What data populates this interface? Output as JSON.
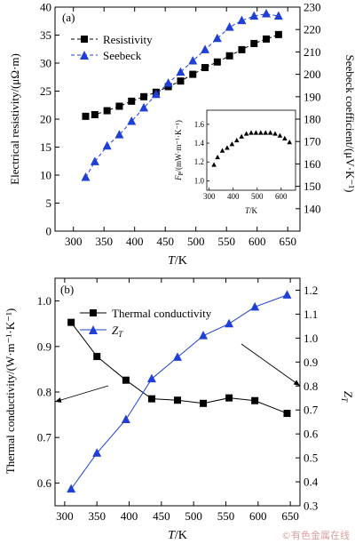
{
  "watermark": "©有色金属在线",
  "chart_data": [
    {
      "panel_label": "(a)",
      "type": "line",
      "xlabel_italic": "T",
      "xlabel_unit": "/K",
      "xlim": [
        270,
        670
      ],
      "xticks": [
        300,
        350,
        400,
        450,
        500,
        550,
        600,
        650
      ],
      "y1label": "Electrical resistivity/(μΩ·m)",
      "y1lim": [
        0,
        40
      ],
      "y1ticks": [
        0,
        5,
        10,
        15,
        20,
        25,
        30,
        35,
        40
      ],
      "y2label": "Seebeck coefficient/(μV·K⁻¹)",
      "y2lim": [
        130,
        230
      ],
      "y2ticks": [
        140,
        150,
        160,
        170,
        180,
        190,
        200,
        210,
        220,
        230
      ],
      "legend_position": "top-left",
      "series": [
        {
          "name": "Resistivity",
          "axis": "left",
          "marker": "square",
          "color": "#000000",
          "x": [
            320,
            335,
            355,
            375,
            395,
            415,
            435,
            455,
            475,
            495,
            515,
            535,
            555,
            575,
            595,
            615,
            635
          ],
          "y": [
            20.5,
            20.8,
            21.5,
            22.3,
            23.2,
            24.0,
            24.8,
            25.8,
            26.8,
            28.0,
            29.2,
            30.2,
            31.3,
            32.4,
            33.5,
            34.3,
            35.1
          ]
        },
        {
          "name": "Seebeck",
          "axis": "right",
          "marker": "triangle",
          "color": "#1f3fd6",
          "x": [
            320,
            335,
            355,
            375,
            395,
            415,
            435,
            455,
            475,
            495,
            515,
            535,
            555,
            575,
            595,
            615,
            635
          ],
          "y": [
            154,
            161,
            168,
            173,
            179,
            185,
            191,
            196,
            201,
            206,
            211,
            216,
            221,
            224,
            226,
            227,
            226
          ]
        }
      ],
      "inset": {
        "type": "scatter",
        "ylabel_italic": "F",
        "ylabel_sub": "P",
        "ylabel_unit": "/(mW·m⁻¹·K⁻¹)",
        "xlabel_italic": "T",
        "xlabel_unit": "/K",
        "xlim": [
          290,
          660
        ],
        "xticks": [
          300,
          400,
          500,
          600
        ],
        "ylim": [
          0.9,
          1.75
        ],
        "yticks": [
          1.0,
          1.2,
          1.4,
          1.6
        ],
        "x": [
          320,
          335,
          355,
          375,
          395,
          415,
          435,
          455,
          475,
          495,
          515,
          535,
          555,
          575,
          595,
          615,
          635
        ],
        "y": [
          1.17,
          1.25,
          1.32,
          1.35,
          1.39,
          1.43,
          1.47,
          1.5,
          1.51,
          1.51,
          1.51,
          1.51,
          1.51,
          1.5,
          1.48,
          1.45,
          1.41
        ]
      }
    },
    {
      "panel_label": "(b)",
      "type": "line",
      "xlabel_italic": "T",
      "xlabel_unit": "/K",
      "xlim": [
        285,
        665
      ],
      "xticks": [
        300,
        350,
        400,
        450,
        500,
        550,
        600,
        650
      ],
      "y1label": "Thermal conductivity/(W·m⁻¹·K⁻¹)",
      "y1lim": [
        0.55,
        1.05
      ],
      "y1ticks": [
        0.6,
        0.7,
        0.8,
        0.9,
        1.0
      ],
      "y2label_italic": "Z",
      "y2label_sub": "T",
      "y2lim": [
        0.3,
        1.25
      ],
      "y2ticks": [
        0.3,
        0.4,
        0.5,
        0.6,
        0.7,
        0.8,
        0.9,
        1.0,
        1.1,
        1.2
      ],
      "legend_position": "top-left",
      "series": [
        {
          "name": "Thermal conductivity",
          "axis": "left",
          "marker": "square",
          "color": "#000000",
          "x": [
            310,
            350,
            395,
            435,
            475,
            515,
            555,
            595,
            645
          ],
          "y": [
            0.953,
            0.878,
            0.826,
            0.785,
            0.782,
            0.775,
            0.787,
            0.781,
            0.753
          ]
        },
        {
          "name_italic": "Z",
          "name_sub": "T",
          "axis": "right",
          "marker": "triangle",
          "color": "#1f3fd6",
          "x": [
            310,
            350,
            395,
            435,
            475,
            515,
            555,
            595,
            645
          ],
          "y": [
            0.37,
            0.52,
            0.66,
            0.83,
            0.92,
            1.01,
            1.06,
            1.13,
            1.18
          ]
        }
      ]
    }
  ]
}
